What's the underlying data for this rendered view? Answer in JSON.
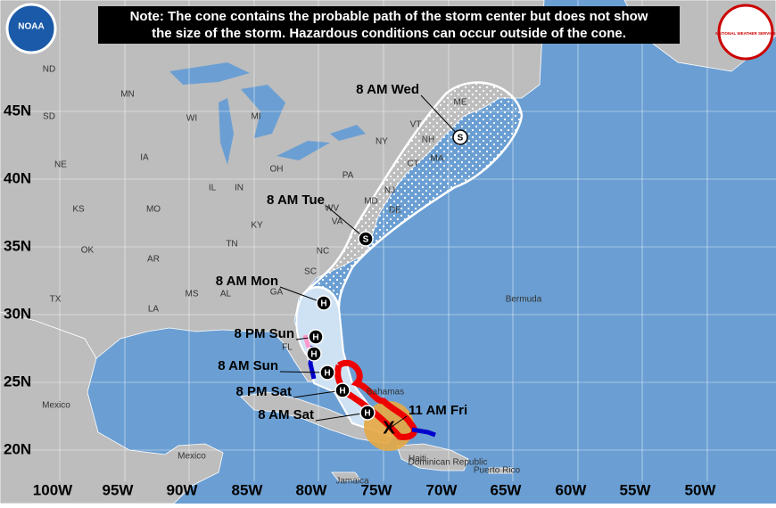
{
  "header": {
    "note_lines": [
      "Note: The cone contains the probable path of the storm center but does not show",
      "the size of the storm. Hazardous conditions can occur outside of the cone."
    ]
  },
  "logos": {
    "left": "NOAA",
    "right": "NATIONAL WEATHER SERVICE"
  },
  "latitude_labels": [
    "45N",
    "40N",
    "35N",
    "30N",
    "25N",
    "20N"
  ],
  "longitude_labels": [
    "100W",
    "95W",
    "90W",
    "85W",
    "80W",
    "75W",
    "70W",
    "65W",
    "60W",
    "55W",
    "50W"
  ],
  "regions": [
    "ND",
    "SD",
    "MN",
    "WI",
    "MI",
    "NE",
    "IA",
    "IL",
    "IN",
    "OH",
    "PA",
    "NY",
    "VT",
    "NH",
    "ME",
    "MA",
    "CT",
    "NJ",
    "KS",
    "MO",
    "KY",
    "WV",
    "VA",
    "OK",
    "AR",
    "TN",
    "NC",
    "SC",
    "GA",
    "AL",
    "MS",
    "LA",
    "TX",
    "FL",
    "DE",
    "MD"
  ],
  "places": [
    "Mexico",
    "Bermuda",
    "Bahamas",
    "Mexico",
    "Jamaica",
    "Haiti",
    "Dominican Republic",
    "Puerto Rico"
  ],
  "forecast_points": [
    {
      "label": "11 AM Fri",
      "symbol": "X"
    },
    {
      "label": "8 AM Sat",
      "symbol": "H"
    },
    {
      "label": "8 PM Sat",
      "symbol": "H"
    },
    {
      "label": "8 AM Sun",
      "symbol": "H"
    },
    {
      "label": "8 PM Sun",
      "symbol": "H"
    },
    {
      "label": "8 AM Mon",
      "symbol": "H"
    },
    {
      "label": "8 AM Tue",
      "symbol": "S"
    },
    {
      "label": "8 AM Wed",
      "symbol": "S"
    },
    {
      "symbol": "H"
    }
  ]
}
